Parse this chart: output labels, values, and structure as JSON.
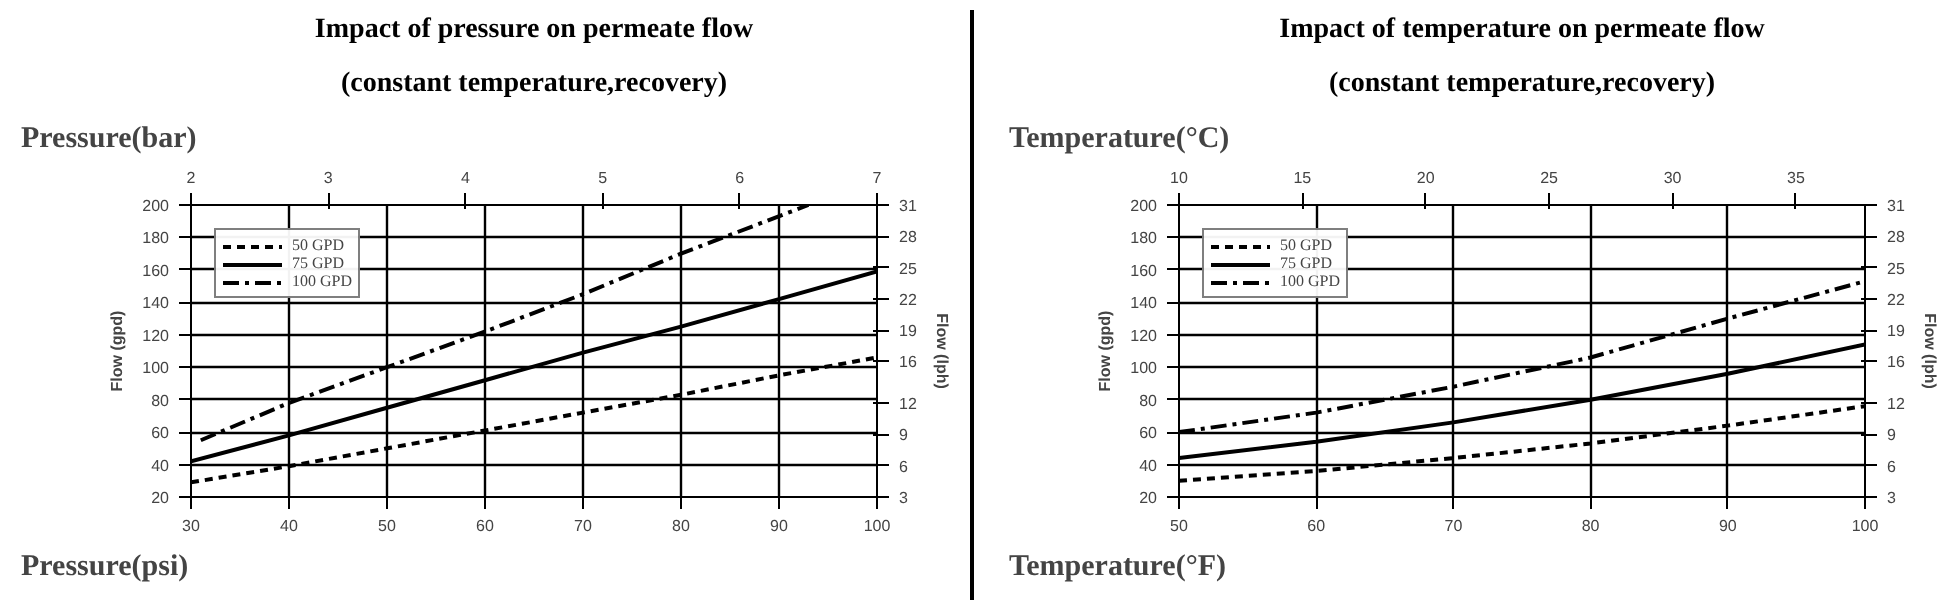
{
  "chart_data": [
    {
      "type": "line",
      "title": "Impact of pressure on permeate flow",
      "subtitle": "(constant temperature,recovery)",
      "xlabel": "Pressure(psi)",
      "x2label": "Pressure(bar)",
      "ylabel": "Flow (gpd)",
      "y2label": "Flow (lph)",
      "xlim": [
        30,
        100
      ],
      "xticks": [
        30,
        40,
        50,
        60,
        70,
        80,
        90,
        100
      ],
      "x2lim": [
        2,
        7
      ],
      "x2ticks": [
        2,
        3,
        4,
        5,
        6,
        7
      ],
      "ylim": [
        20,
        200
      ],
      "yticks": [
        20,
        40,
        60,
        80,
        100,
        120,
        140,
        160,
        180,
        200
      ],
      "y2lim": [
        3,
        31
      ],
      "y2ticks": [
        3,
        6,
        9,
        12,
        16,
        19,
        22,
        25,
        28,
        31
      ],
      "grid": true,
      "legend": "top left",
      "series": [
        {
          "name": "50 GPD",
          "color": "#000000",
          "line_style": "dashed",
          "x": [
            30,
            40,
            50,
            60,
            70,
            80,
            90,
            100
          ],
          "values": [
            29,
            39,
            50,
            61,
            72,
            83,
            95,
            106
          ]
        },
        {
          "name": "75 GPD",
          "color": "#000000",
          "line_style": "solid",
          "x": [
            30,
            40,
            50,
            60,
            70,
            80,
            90,
            100
          ],
          "values": [
            42,
            58,
            75,
            92,
            109,
            125,
            142,
            159
          ]
        },
        {
          "name": "100 GPD",
          "color": "#000000",
          "line_style": "dashdot",
          "x": [
            31,
            40,
            50,
            60,
            70,
            80,
            93
          ],
          "values": [
            55,
            78,
            100,
            122,
            145,
            170,
            200
          ]
        }
      ]
    },
    {
      "type": "line",
      "title": "Impact of temperature on permeate flow",
      "subtitle": "(constant temperature,recovery)",
      "xlabel": "Temperature(°F)",
      "x2label": "Temperature(°C)",
      "ylabel": "Flow (gpd)",
      "y2label": "Flow (lph)",
      "xlim": [
        50,
        100
      ],
      "xticks": [
        50,
        60,
        70,
        80,
        90,
        100
      ],
      "x2lim": [
        10,
        37.8
      ],
      "x2ticks": [
        10,
        15,
        20,
        25,
        30,
        35
      ],
      "ylim": [
        20,
        200
      ],
      "yticks": [
        20,
        40,
        60,
        80,
        100,
        120,
        140,
        160,
        180,
        200
      ],
      "y2lim": [
        3,
        31
      ],
      "y2ticks": [
        3,
        6,
        9,
        12,
        16,
        19,
        22,
        25,
        28,
        31
      ],
      "grid": true,
      "legend": "top left",
      "series": [
        {
          "name": "50 GPD",
          "color": "#000000",
          "line_style": "dashed",
          "x": [
            50,
            60,
            70,
            80,
            90,
            100
          ],
          "values": [
            30,
            36,
            44,
            53,
            64,
            76
          ]
        },
        {
          "name": "75 GPD",
          "color": "#000000",
          "line_style": "solid",
          "x": [
            50,
            60,
            70,
            80,
            90,
            100
          ],
          "values": [
            44,
            54,
            66,
            80,
            96,
            114
          ]
        },
        {
          "name": "100 GPD",
          "color": "#000000",
          "line_style": "dashdot",
          "x": [
            50,
            60,
            70,
            80,
            90,
            100
          ],
          "values": [
            60,
            72,
            88,
            106,
            130,
            153
          ]
        }
      ]
    }
  ]
}
